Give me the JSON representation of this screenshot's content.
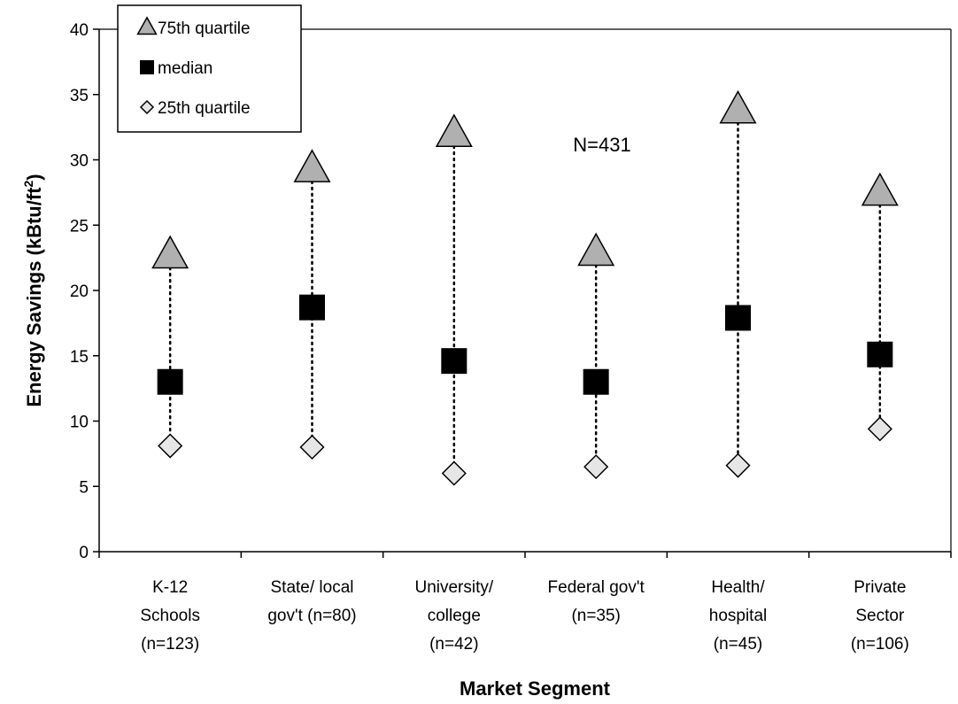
{
  "chart_data": {
    "type": "scatter",
    "xlabel": "Market Segment",
    "ylabel": "Energy Savings (kBtu/ft",
    "ylabel_sup": "2",
    "ylabel_close": ")",
    "ylim": [
      0,
      40
    ],
    "yticks": [
      0,
      5,
      10,
      15,
      20,
      25,
      30,
      35,
      40
    ],
    "grid": false,
    "legend_position": "top-left",
    "annotation": "N=431",
    "categories": [
      [
        "K-12",
        "Schools",
        "(n=123)"
      ],
      [
        "State/ local",
        "gov't (n=80)"
      ],
      [
        "University/",
        "college",
        "(n=42)"
      ],
      [
        "Federal gov't",
        "(n=35)"
      ],
      [
        "Health/",
        "hospital",
        "(n=45)"
      ],
      [
        "Private",
        "Sector",
        "(n=106)"
      ]
    ],
    "series": [
      {
        "name": "75th quartile",
        "marker": "triangle",
        "color": "#b0b0b0",
        "values": [
          22.7,
          29.3,
          32.0,
          22.9,
          33.8,
          27.5
        ]
      },
      {
        "name": "median",
        "marker": "square",
        "color": "#000000",
        "values": [
          13.0,
          18.7,
          14.6,
          13.0,
          17.9,
          15.1
        ]
      },
      {
        "name": "25th quartile",
        "marker": "diamond",
        "color": "#e6e6e6",
        "values": [
          8.1,
          8.0,
          6.0,
          6.5,
          6.6,
          9.4
        ]
      }
    ]
  }
}
